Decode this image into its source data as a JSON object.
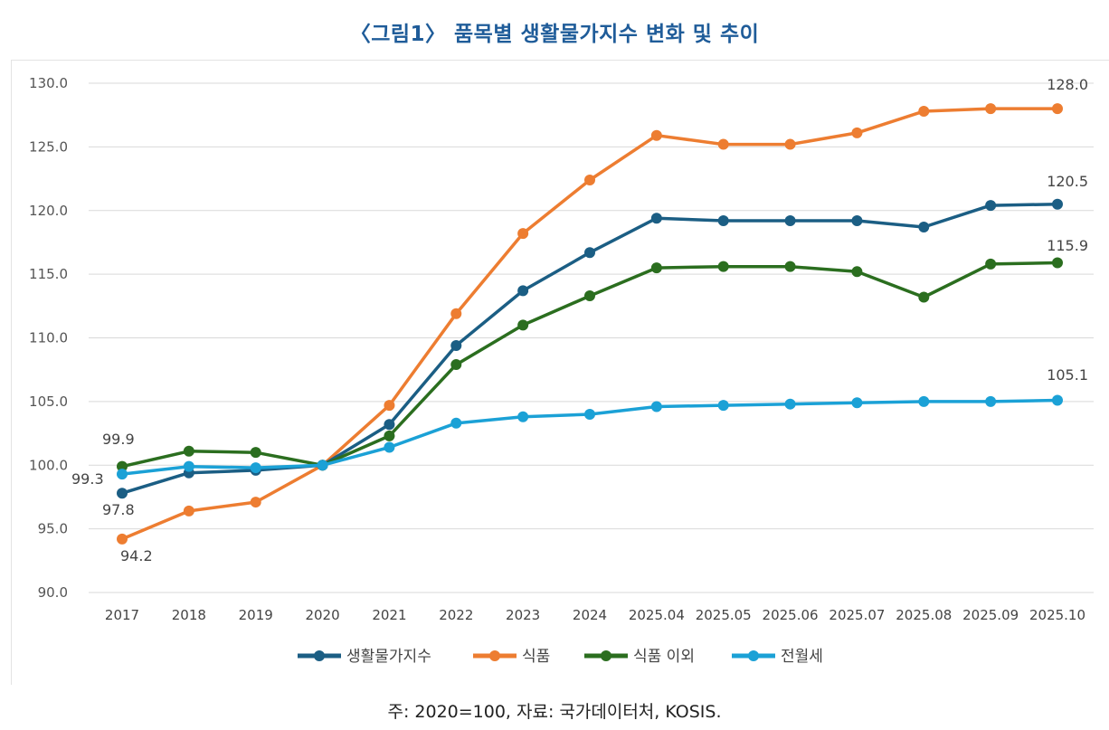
{
  "header": {
    "title": "〈그림1〉 품목별 생활물가지수 변화 및 추이"
  },
  "footer": {
    "note": "주: 2020=100, 자료: 국가데이터처, KOSIS."
  },
  "chart_data": {
    "type": "line",
    "title": "〈그림1〉 품목별 생활물가지수 변화 및 추이",
    "xlabel": "",
    "ylabel": "",
    "ylim": [
      90,
      130
    ],
    "yticks": [
      "130.0",
      "125.0",
      "120.0",
      "115.0",
      "110.0",
      "105.0",
      "100.0",
      "95.0",
      "90.0"
    ],
    "grid": true,
    "legend_position": "bottom",
    "categories": [
      "2017",
      "2018",
      "2019",
      "2020",
      "2021",
      "2022",
      "2023",
      "2024",
      "2025.04",
      "2025.05",
      "2025.06",
      "2025.07",
      "2025.08",
      "2025.09",
      "2025.10"
    ],
    "series": [
      {
        "name": "생활물가지수",
        "color": "#1b5e84",
        "values": [
          97.8,
          99.4,
          99.6,
          100.0,
          103.2,
          109.4,
          113.7,
          116.7,
          119.4,
          119.2,
          119.2,
          119.2,
          118.7,
          120.4,
          120.5
        ]
      },
      {
        "name": "식품",
        "color": "#ed7d31",
        "values": [
          94.2,
          96.4,
          97.1,
          100.0,
          104.7,
          111.9,
          118.2,
          122.4,
          125.9,
          125.2,
          125.2,
          126.1,
          127.8,
          128.0,
          128.0
        ]
      },
      {
        "name": "식품 이외",
        "color": "#2b6e1f",
        "values": [
          99.9,
          101.1,
          101.0,
          100.0,
          102.3,
          107.9,
          111.0,
          113.3,
          115.5,
          115.6,
          115.6,
          115.2,
          113.2,
          115.8,
          115.9
        ]
      },
      {
        "name": "전월세",
        "color": "#1ba1d6",
        "values": [
          99.3,
          99.9,
          99.8,
          100.0,
          101.4,
          103.3,
          103.8,
          104.0,
          104.6,
          104.7,
          104.8,
          104.9,
          105.0,
          105.0,
          105.1
        ]
      }
    ],
    "annotations": [
      "99.9",
      "99.3",
      "97.8",
      "94.2",
      "128.0",
      "120.5",
      "115.9",
      "105.1"
    ]
  }
}
